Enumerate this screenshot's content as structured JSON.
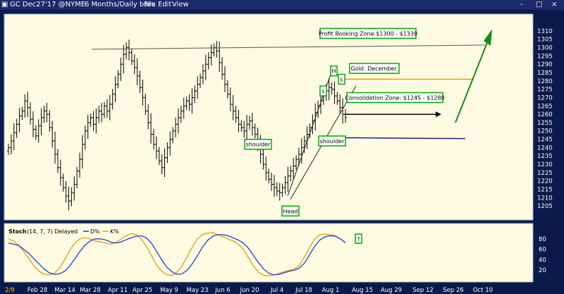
{
  "window": {
    "title": "GC Dec27'17 @NYME",
    "interval": "6 Months/Daily bars",
    "menu": [
      "File",
      "Edit",
      "View"
    ],
    "controls": [
      "-",
      "□",
      "×"
    ]
  },
  "colors": {
    "panel_bg": "#fffbe2",
    "frame": "#0a1a4a",
    "bars": "#000000",
    "trend": "#555555",
    "box_border": "#00aa00",
    "target_orange": "#ff9900",
    "support_blue": "#1020a0",
    "arrow_green": "#1a8a1a",
    "d_line": "#2040d0",
    "k_line": "#e89a10"
  },
  "chart_data": {
    "type": "ohlc",
    "title": "GC Dec27'17 @NYME 6 Months/Daily bars",
    "ylim": [
      1200,
      1315
    ],
    "y_ticks": [
      1205,
      1210,
      1215,
      1220,
      1225,
      1230,
      1235,
      1240,
      1245,
      1250,
      1255,
      1260,
      1265,
      1270,
      1275,
      1280,
      1285,
      1290,
      1295,
      1300,
      1305,
      1310
    ],
    "x_ticks": [
      "2/9",
      "Feb 28",
      "Mar 14",
      "Mar 28",
      "Apr 11",
      "Apr 25",
      "May 9",
      "May 23",
      "Jun 6",
      "Jun 20",
      "Jul 4",
      "Jul 18",
      "Aug 1",
      "Aug 15",
      "Aug 29",
      "Sep 12",
      "Sep 26",
      "Oct 10"
    ],
    "bar_count": 124,
    "closes": [
      1240,
      1244,
      1249,
      1254,
      1259,
      1262,
      1268,
      1264,
      1257,
      1251,
      1247,
      1253,
      1258,
      1262,
      1260,
      1252,
      1244,
      1236,
      1228,
      1222,
      1216,
      1211,
      1208,
      1213,
      1218,
      1226,
      1233,
      1242,
      1250,
      1255,
      1258,
      1254,
      1258,
      1262,
      1260,
      1265,
      1262,
      1266,
      1272,
      1278,
      1284,
      1290,
      1296,
      1300,
      1297,
      1292,
      1288,
      1283,
      1276,
      1270,
      1262,
      1255,
      1248,
      1242,
      1238,
      1232,
      1228,
      1234,
      1240,
      1245,
      1250,
      1254,
      1258,
      1262,
      1265,
      1268,
      1266,
      1270,
      1274,
      1278,
      1282,
      1286,
      1290,
      1294,
      1297,
      1300,
      1298,
      1291,
      1284,
      1278,
      1272,
      1266,
      1262,
      1258,
      1254,
      1252,
      1250,
      1254,
      1256,
      1252,
      1248,
      1242,
      1236,
      1230,
      1225,
      1221,
      1218,
      1216,
      1214,
      1213,
      1216,
      1219,
      1223,
      1226,
      1229,
      1233,
      1236,
      1240,
      1244,
      1248,
      1252,
      1256,
      1261,
      1265,
      1268,
      1272,
      1274,
      1276,
      1275,
      1271,
      1268,
      1264,
      1260,
      1258
    ],
    "trendlines": {
      "resistance_top": {
        "from": [
          1300,
          1298.5
        ],
        "note": "Profit Booking Zone"
      },
      "target_orange": 1281,
      "support_blue": 1246
    },
    "annotations": [
      "Profit Booking Zone:$1300 - $1330",
      "Gold. December.",
      "Consolidation Zone: $1245 - $1280",
      "shoulder",
      "shoulder",
      "Head",
      "H",
      "s",
      "s",
      "?"
    ],
    "stochastic": {
      "label": "Stoch",
      "params": "(14, 7, 7) Delayed",
      "legend_d": "D%",
      "legend_k": "K%",
      "ylim": [
        0,
        100
      ],
      "y_ticks": [
        20,
        40,
        60,
        80
      ],
      "d_values": [
        72,
        70,
        67,
        60,
        52,
        42,
        32,
        22,
        15,
        12,
        13,
        18,
        28,
        42,
        56,
        68,
        76,
        80,
        80,
        78,
        74,
        72,
        74,
        78,
        82,
        85,
        86,
        82,
        72,
        56,
        40,
        26,
        17,
        12,
        13,
        20,
        32,
        48,
        64,
        77,
        85,
        88,
        88,
        86,
        82,
        78,
        72,
        62,
        48,
        34,
        22,
        14,
        11,
        12,
        15,
        18,
        20,
        24,
        34,
        50,
        66,
        78,
        84,
        86,
        85,
        80,
        73
      ],
      "k_values": [
        80,
        76,
        68,
        56,
        42,
        28,
        18,
        12,
        11,
        14,
        24,
        40,
        58,
        72,
        80,
        82,
        80,
        76,
        74,
        72,
        70,
        73,
        79,
        86,
        90,
        88,
        80,
        66,
        48,
        30,
        18,
        11,
        10,
        16,
        28,
        46,
        64,
        80,
        88,
        91,
        92,
        88,
        84,
        80,
        76,
        70,
        60,
        44,
        28,
        16,
        10,
        9,
        11,
        14,
        17,
        20,
        22,
        30,
        46,
        64,
        80,
        88,
        89,
        88,
        86,
        80,
        72
      ]
    }
  }
}
